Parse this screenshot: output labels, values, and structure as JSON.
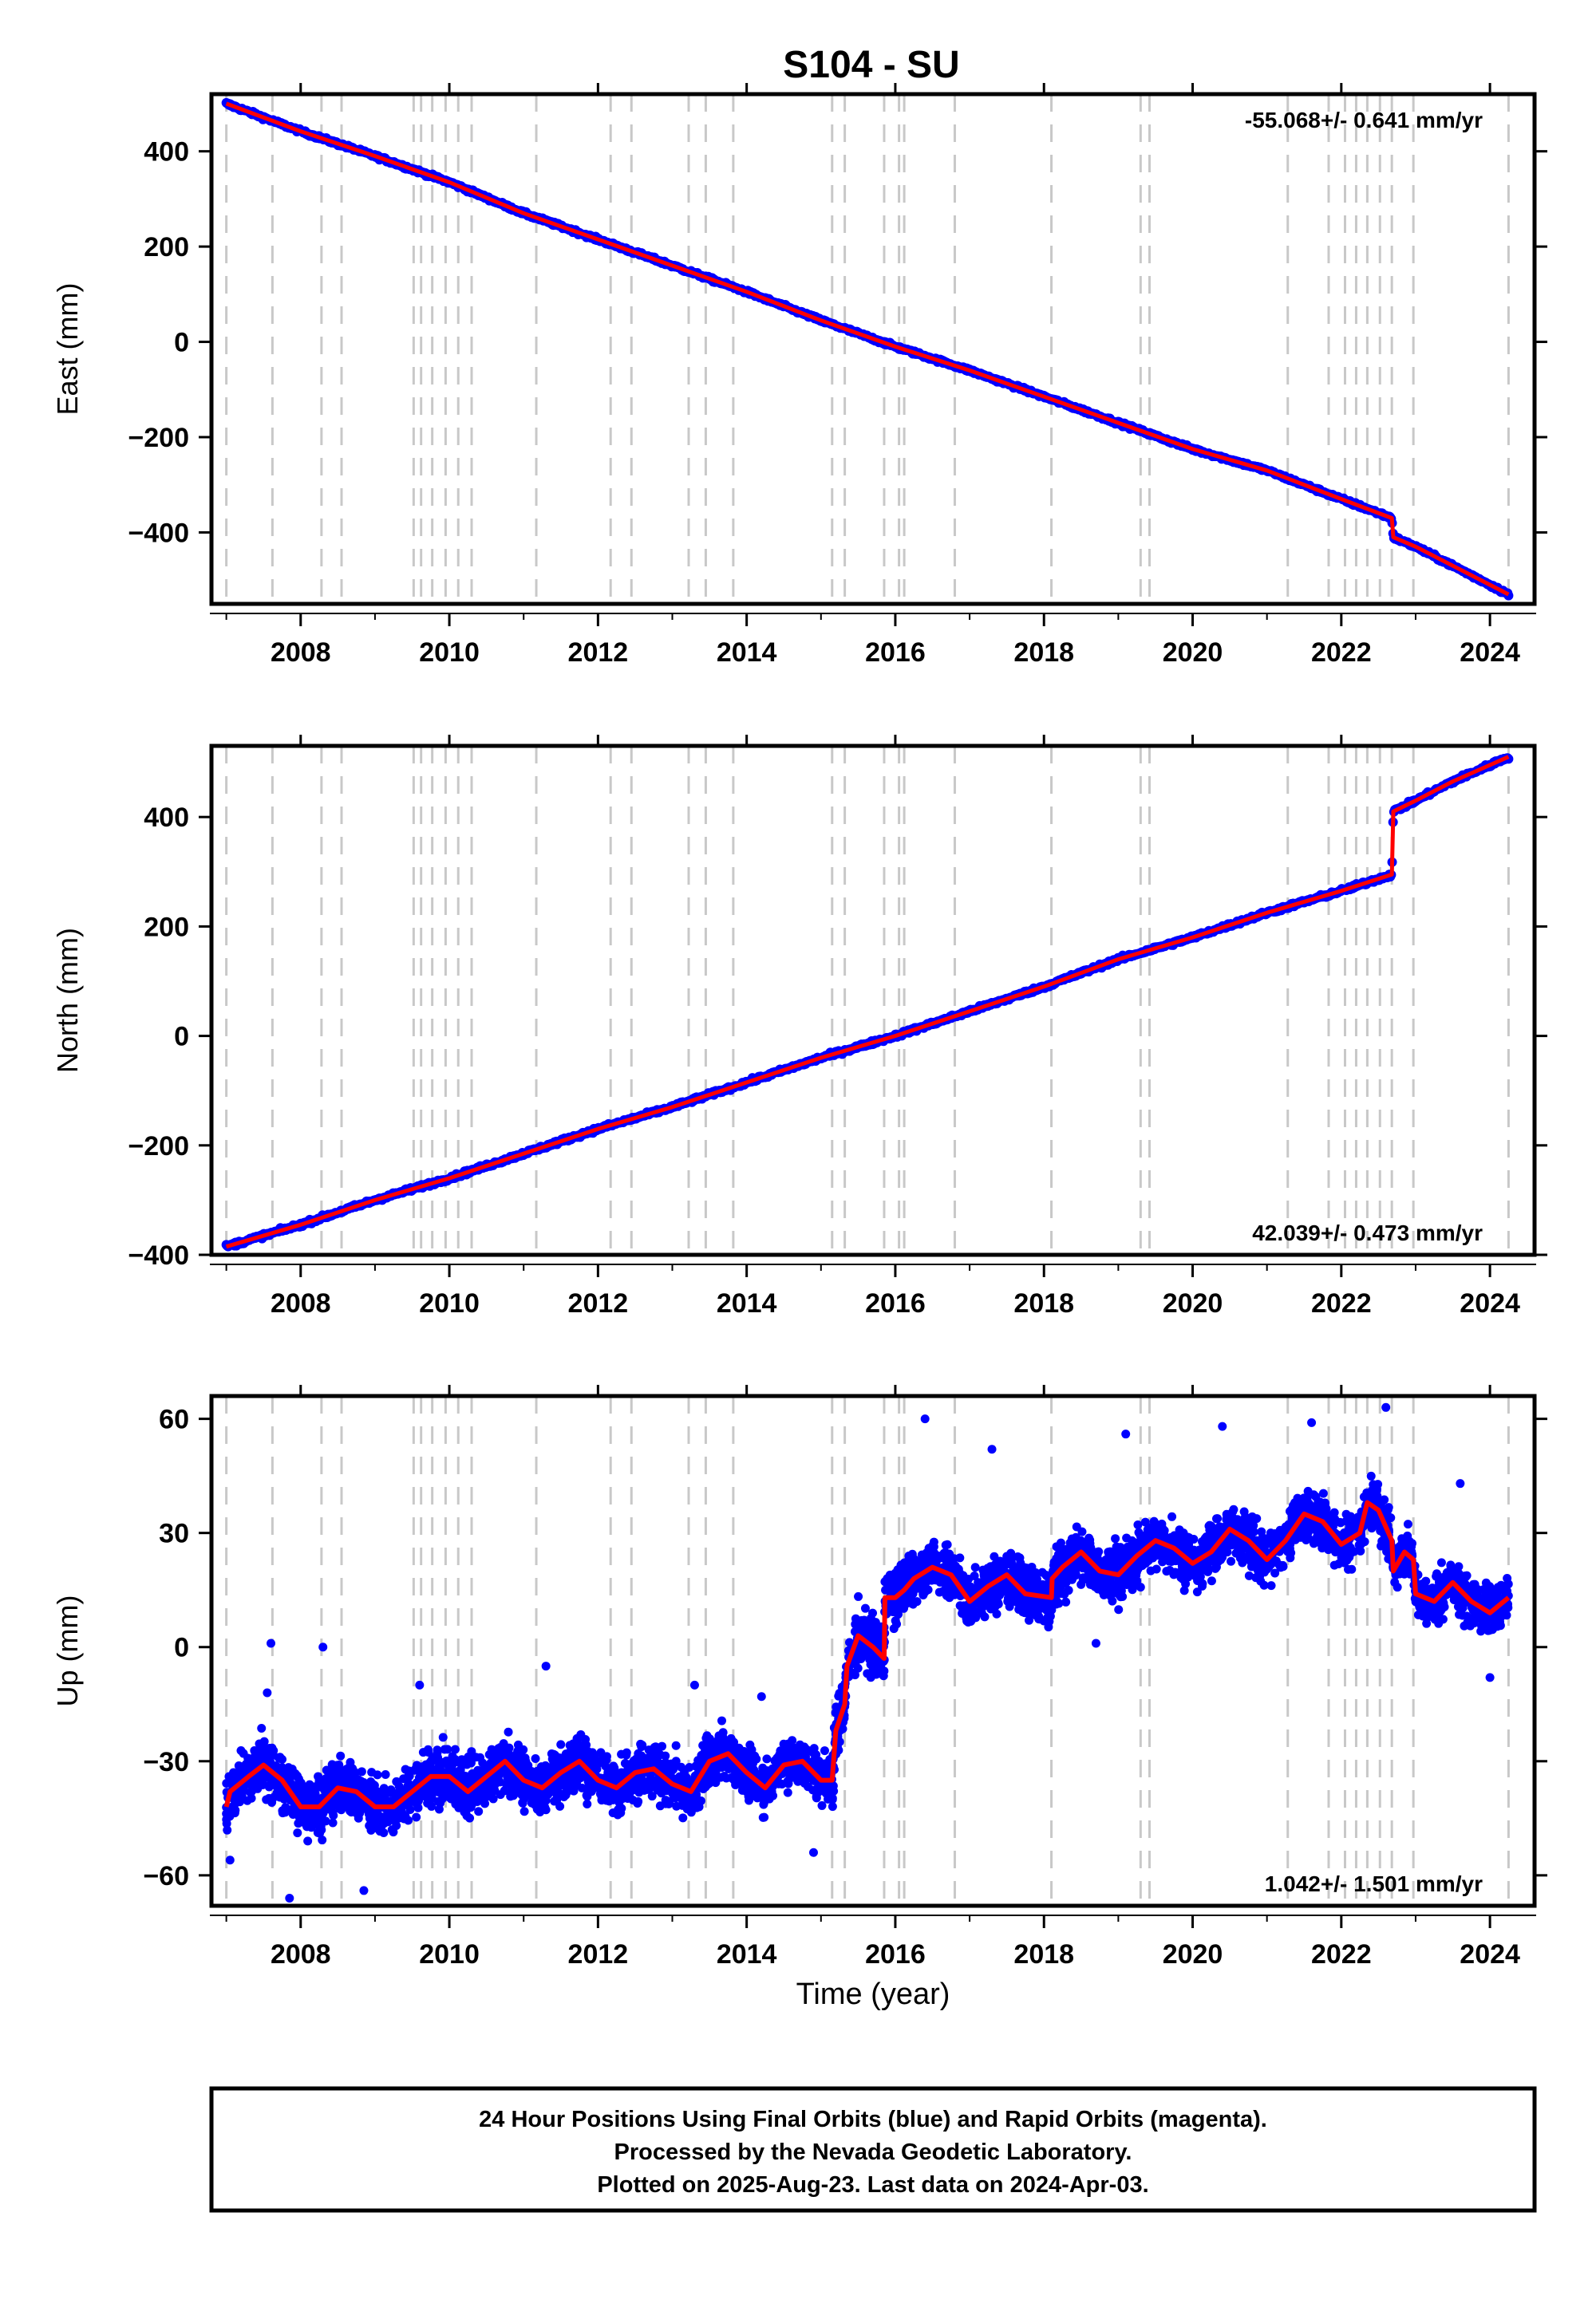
{
  "title": "S104 - SU",
  "colors": {
    "final": "#0000ff",
    "model": "#ff0000",
    "event": "#c8c8c8",
    "frame": "#000000"
  },
  "footer": {
    "line1": "24 Hour Positions Using Final Orbits (blue) and Rapid Orbits (magenta).",
    "line2": "Processed by the Nevada Geodetic Laboratory.",
    "line3": "Plotted on 2025-Aug-23. Last data on 2024-Apr-03."
  },
  "chart_data": [
    {
      "type": "scatter",
      "panel": "east",
      "ylabel": "East (mm)",
      "xlabel": "",
      "xlim": [
        2006.8,
        2024.6
      ],
      "ylim": [
        -550,
        520
      ],
      "xticks": [
        2008,
        2010,
        2012,
        2014,
        2016,
        2018,
        2020,
        2022,
        2024
      ],
      "yticks": [
        -400,
        -200,
        0,
        200,
        400
      ],
      "rate_label": "-55.068+/- 0.641 mm/yr",
      "rate_position": "top-right",
      "event_lines": [
        2007.0,
        2007.62,
        2008.28,
        2008.55,
        2009.52,
        2009.62,
        2009.77,
        2009.95,
        2010.12,
        2010.3,
        2011.17,
        2012.17,
        2012.45,
        2013.22,
        2013.45,
        2013.82,
        2015.15,
        2015.32,
        2015.85,
        2016.05,
        2016.12,
        2016.8,
        2018.1,
        2019.3,
        2019.42,
        2021.28,
        2021.83,
        2022.05,
        2022.2,
        2022.35,
        2022.52,
        2022.68,
        2022.97,
        2024.25
      ],
      "series": [
        {
          "role": "data",
          "x": [
            2007.0,
            2008.0,
            2009.0,
            2010.0,
            2011.0,
            2012.0,
            2013.0,
            2014.0,
            2015.0,
            2016.0,
            2017.0,
            2018.0,
            2019.0,
            2020.0,
            2021.0,
            2022.0,
            2022.68,
            2022.7,
            2023.0,
            2023.5,
            2024.0,
            2024.25
          ],
          "y": [
            500,
            442,
            390,
            335,
            270,
            215,
            160,
            105,
            45,
            -10,
            -60,
            -115,
            -170,
            -225,
            -270,
            -330,
            -370,
            -410,
            -430,
            -470,
            -510,
            -530
          ]
        },
        {
          "role": "model",
          "x": [
            2007.0,
            2008.0,
            2009.0,
            2010.0,
            2011.0,
            2012.0,
            2013.0,
            2014.0,
            2015.0,
            2016.0,
            2017.0,
            2018.0,
            2019.0,
            2020.0,
            2021.0,
            2022.0,
            2022.68,
            2022.7,
            2023.0,
            2023.5,
            2024.0,
            2024.25
          ],
          "y": [
            500,
            442,
            390,
            335,
            270,
            215,
            160,
            105,
            45,
            -10,
            -60,
            -115,
            -170,
            -225,
            -270,
            -330,
            -370,
            -410,
            -430,
            -470,
            -510,
            -530
          ]
        }
      ]
    },
    {
      "type": "scatter",
      "panel": "north",
      "ylabel": "North (mm)",
      "xlabel": "",
      "xlim": [
        2006.8,
        2024.6
      ],
      "ylim": [
        -400,
        530
      ],
      "xticks": [
        2008,
        2010,
        2012,
        2014,
        2016,
        2018,
        2020,
        2022,
        2024
      ],
      "yticks": [
        -400,
        -200,
        0,
        200,
        400
      ],
      "rate_label": "42.039+/- 0.473 mm/yr",
      "rate_position": "bottom-right",
      "event_lines": [
        2007.0,
        2007.62,
        2008.28,
        2008.55,
        2009.52,
        2009.62,
        2009.77,
        2009.95,
        2010.12,
        2010.3,
        2011.17,
        2012.17,
        2012.45,
        2013.22,
        2013.45,
        2013.82,
        2015.15,
        2015.32,
        2015.85,
        2016.05,
        2016.12,
        2016.8,
        2018.1,
        2019.3,
        2019.42,
        2021.28,
        2021.83,
        2022.05,
        2022.2,
        2022.35,
        2022.52,
        2022.68,
        2022.97,
        2024.25
      ],
      "series": [
        {
          "role": "data",
          "x": [
            2007.0,
            2008.0,
            2009.0,
            2010.0,
            2011.0,
            2012.0,
            2013.0,
            2014.0,
            2015.0,
            2016.0,
            2017.0,
            2018.0,
            2019.0,
            2020.0,
            2021.0,
            2022.0,
            2022.68,
            2022.7,
            2023.0,
            2023.5,
            2024.0,
            2024.25
          ],
          "y": [
            -385,
            -345,
            -300,
            -260,
            -215,
            -170,
            -130,
            -85,
            -40,
            0,
            45,
            90,
            140,
            180,
            225,
            265,
            295,
            410,
            430,
            465,
            495,
            510
          ]
        },
        {
          "role": "model",
          "x": [
            2007.0,
            2008.0,
            2009.0,
            2010.0,
            2011.0,
            2012.0,
            2013.0,
            2014.0,
            2015.0,
            2016.0,
            2017.0,
            2018.0,
            2019.0,
            2020.0,
            2021.0,
            2022.0,
            2022.68,
            2022.7,
            2023.0,
            2023.5,
            2024.0,
            2024.25
          ],
          "y": [
            -385,
            -345,
            -300,
            -260,
            -215,
            -170,
            -130,
            -85,
            -40,
            0,
            45,
            90,
            140,
            180,
            225,
            265,
            295,
            410,
            430,
            465,
            495,
            510
          ]
        }
      ]
    },
    {
      "type": "scatter",
      "panel": "up",
      "ylabel": "Up (mm)",
      "xlabel": "Time (year)",
      "xlim": [
        2006.8,
        2024.6
      ],
      "ylim": [
        -68,
        66
      ],
      "xticks": [
        2008,
        2010,
        2012,
        2014,
        2016,
        2018,
        2020,
        2022,
        2024
      ],
      "yticks": [
        -60,
        -30,
        0,
        30,
        60
      ],
      "rate_label": "1.042+/- 1.501 mm/yr",
      "rate_position": "bottom-right",
      "event_lines": [
        2007.0,
        2007.62,
        2008.28,
        2008.55,
        2009.52,
        2009.62,
        2009.77,
        2009.95,
        2010.12,
        2010.3,
        2011.17,
        2012.17,
        2012.45,
        2013.22,
        2013.45,
        2013.82,
        2015.15,
        2015.32,
        2015.85,
        2016.05,
        2016.12,
        2016.8,
        2018.1,
        2019.3,
        2019.42,
        2021.28,
        2021.83,
        2022.05,
        2022.2,
        2022.35,
        2022.52,
        2022.68,
        2022.97,
        2024.25
      ],
      "series": [
        {
          "role": "model",
          "x": [
            2007.0,
            2007.05,
            2007.3,
            2007.5,
            2007.75,
            2008.0,
            2008.25,
            2008.5,
            2008.75,
            2009.0,
            2009.25,
            2009.5,
            2009.75,
            2010.0,
            2010.25,
            2010.5,
            2010.75,
            2011.0,
            2011.25,
            2011.5,
            2011.75,
            2012.0,
            2012.25,
            2012.5,
            2012.75,
            2013.0,
            2013.25,
            2013.5,
            2013.75,
            2014.0,
            2014.25,
            2014.5,
            2014.75,
            2015.0,
            2015.15,
            2015.2,
            2015.32,
            2015.35,
            2015.5,
            2015.7,
            2015.85,
            2015.86,
            2016.0,
            2016.12,
            2016.25,
            2016.5,
            2016.75,
            2017.0,
            2017.25,
            2017.5,
            2017.75,
            2018.1,
            2018.11,
            2018.25,
            2018.5,
            2018.75,
            2019.0,
            2019.25,
            2019.5,
            2019.75,
            2020.0,
            2020.25,
            2020.5,
            2020.75,
            2021.0,
            2021.25,
            2021.5,
            2021.75,
            2022.0,
            2022.25,
            2022.35,
            2022.5,
            2022.68,
            2022.7,
            2022.85,
            2022.97,
            2023.0,
            2023.25,
            2023.5,
            2023.75,
            2024.0,
            2024.25
          ],
          "y": [
            -42,
            -38,
            -34,
            -31,
            -35,
            -42,
            -42,
            -37,
            -38,
            -42,
            -42,
            -38,
            -34,
            -34,
            -38,
            -34,
            -30,
            -35,
            -37,
            -33,
            -30,
            -35,
            -37,
            -33,
            -32,
            -36,
            -38,
            -30,
            -28,
            -33,
            -37,
            -31,
            -30,
            -35,
            -35,
            -22,
            -15,
            -5,
            3,
            0,
            -3,
            13,
            13,
            15,
            18,
            21,
            19,
            12,
            16,
            19,
            14,
            13,
            18,
            21,
            25,
            20,
            19,
            24,
            28,
            26,
            22,
            25,
            31,
            28,
            23,
            28,
            35,
            33,
            27,
            30,
            38,
            36,
            28,
            20,
            25,
            23,
            14,
            12,
            17,
            12,
            9,
            13
          ]
        }
      ],
      "scatter_band": [
        {
          "x": [
            2007.0,
            2015.15
          ],
          "center": -35,
          "spread": 9
        },
        {
          "x": [
            2015.15,
            2015.85
          ],
          "center": -12,
          "spread": 10
        },
        {
          "x": [
            2015.85,
            2022.7
          ],
          "center": 22,
          "spread": 9
        },
        {
          "x": [
            2022.7,
            2024.25
          ],
          "center": 12,
          "spread": 8
        }
      ],
      "outliers": [
        {
          "x": 2007.6,
          "y": 1
        },
        {
          "x": 2007.55,
          "y": -12
        },
        {
          "x": 2008.3,
          "y": 0
        },
        {
          "x": 2007.85,
          "y": -66
        },
        {
          "x": 2008.85,
          "y": -64
        },
        {
          "x": 2007.05,
          "y": -56
        },
        {
          "x": 2009.6,
          "y": -10
        },
        {
          "x": 2011.3,
          "y": -5
        },
        {
          "x": 2016.4,
          "y": 60
        },
        {
          "x": 2017.3,
          "y": 52
        },
        {
          "x": 2020.4,
          "y": 58
        },
        {
          "x": 2021.6,
          "y": 59
        },
        {
          "x": 2022.6,
          "y": 63
        },
        {
          "x": 2014.9,
          "y": -54
        },
        {
          "x": 2014.2,
          "y": -13
        },
        {
          "x": 2018.7,
          "y": 1
        },
        {
          "x": 2019.1,
          "y": 56
        },
        {
          "x": 2013.3,
          "y": -10
        },
        {
          "x": 2023.6,
          "y": 43
        },
        {
          "x": 2024.0,
          "y": -8
        }
      ]
    }
  ]
}
